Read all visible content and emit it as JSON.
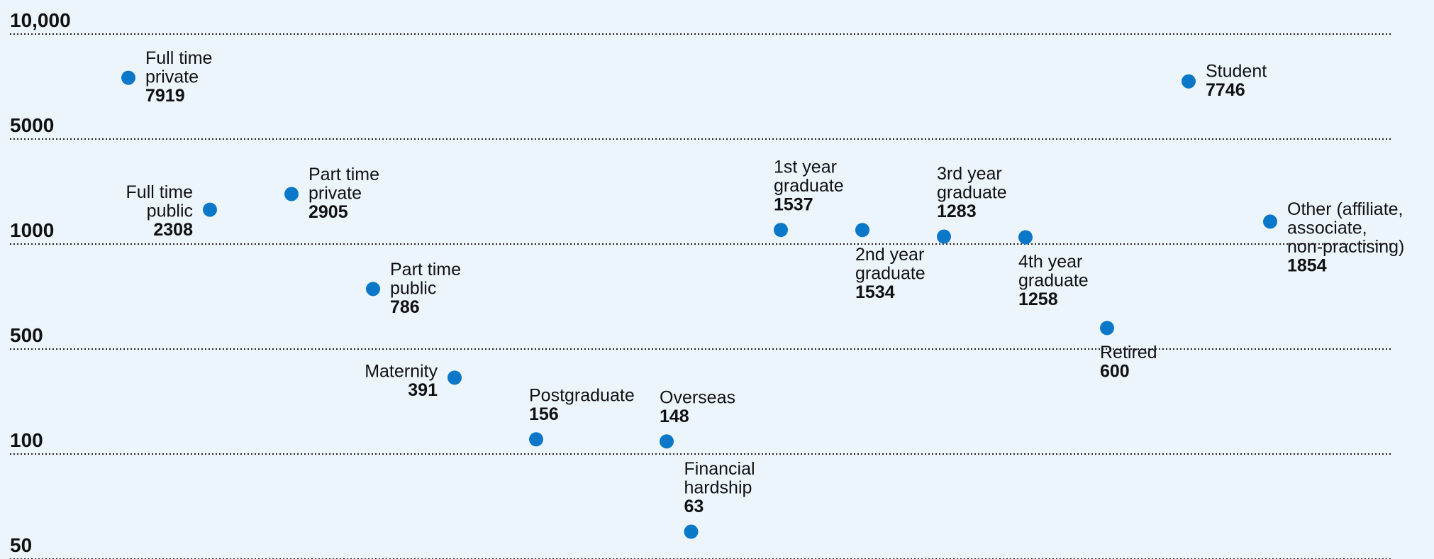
{
  "chart_data": {
    "type": "dot",
    "categories": [
      [
        "Full time",
        "private"
      ],
      [
        "Full time",
        "public"
      ],
      [
        "Part time",
        "private"
      ],
      [
        "Part time",
        "public"
      ],
      [
        "Maternity"
      ],
      [
        "Postgraduate"
      ],
      [
        "Overseas"
      ],
      [
        "Financial",
        "hardship"
      ],
      [
        "1st year",
        "graduate"
      ],
      [
        "2nd year",
        "graduate"
      ],
      [
        "3rd year",
        "graduate"
      ],
      [
        "4th year",
        "graduate"
      ],
      [
        "Retired"
      ],
      [
        "Student"
      ],
      [
        "Other (affiliate,",
        "associate,",
        "non-practising)"
      ]
    ],
    "values": [
      7919,
      2308,
      2905,
      786,
      391,
      156,
      148,
      63,
      1537,
      1534,
      1283,
      1258,
      600,
      7746,
      1854
    ],
    "color": "#0a77c9",
    "ylim": [
      50,
      10000
    ],
    "yticks": [
      {
        "value": 10000,
        "label": "10,000"
      },
      5000,
      1000,
      500,
      100,
      50
    ],
    "grid": true
  }
}
